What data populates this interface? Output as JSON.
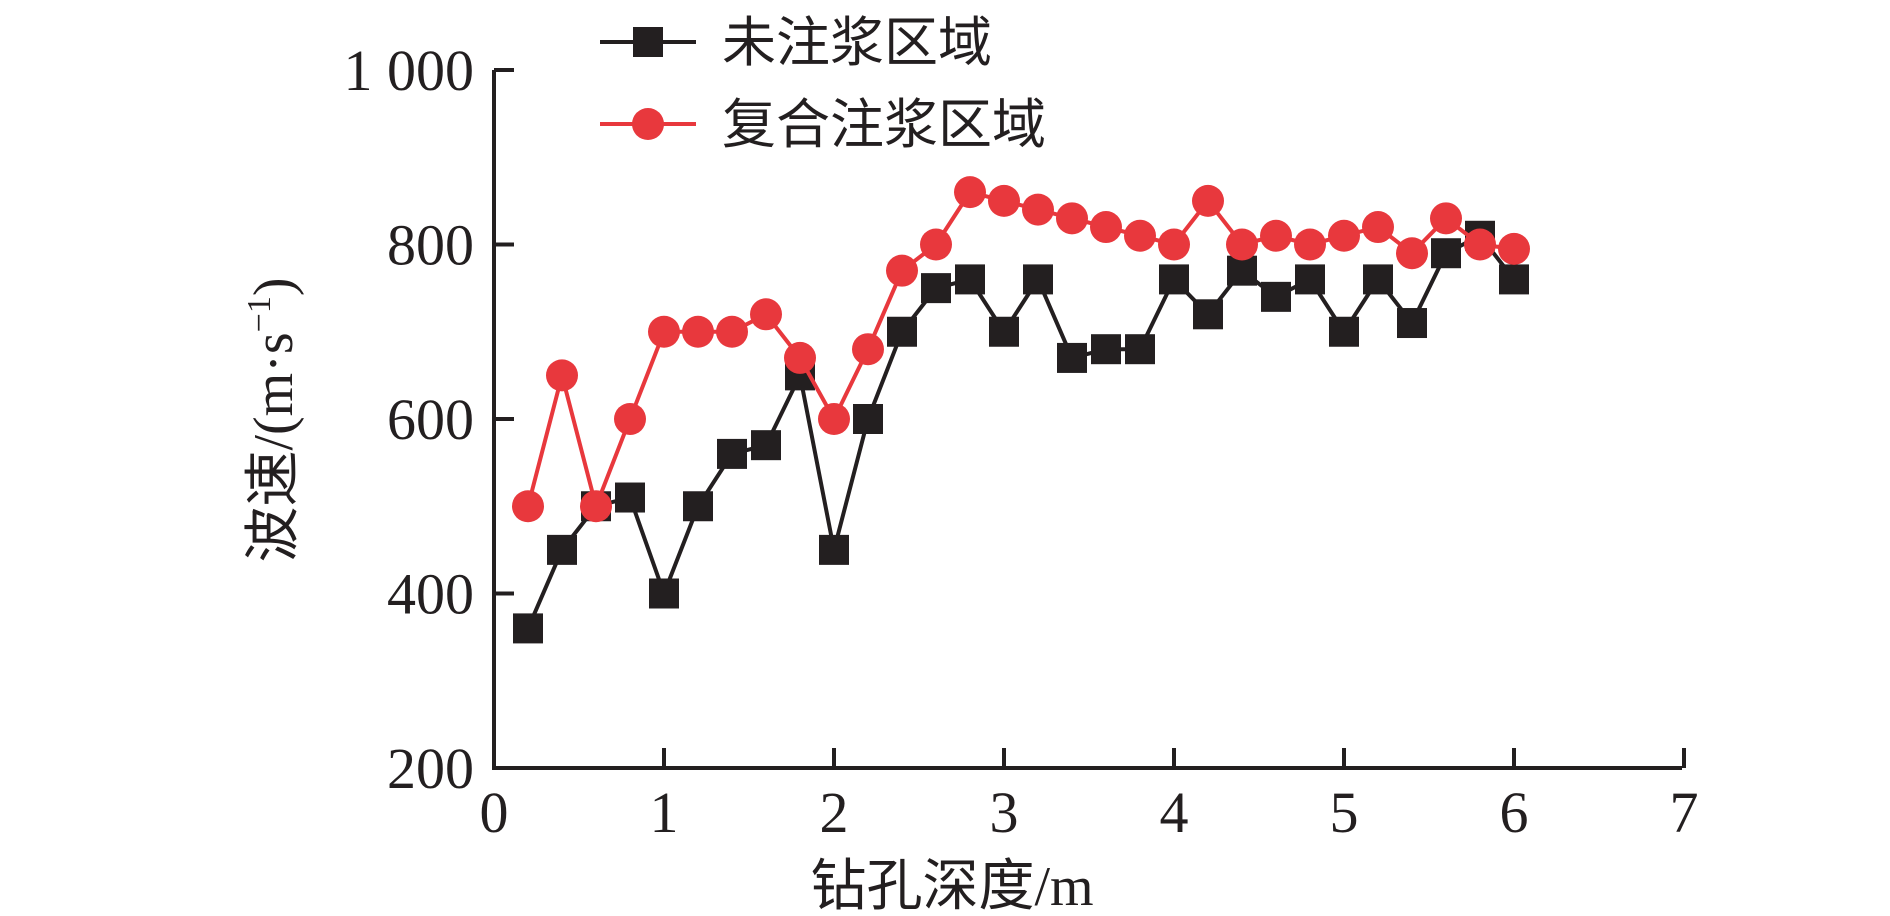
{
  "chart_data": {
    "type": "line",
    "xlabel": "钻孔深度/m",
    "ylabel": "波速/(m·s",
    "ylabel_sup": "−1",
    "ylabel_close": ")",
    "xlim": [
      0,
      7
    ],
    "ylim": [
      200,
      1000
    ],
    "xticks": [
      0,
      1,
      2,
      3,
      4,
      5,
      6,
      7
    ],
    "yticks": [
      200,
      400,
      600,
      800,
      1000
    ],
    "xtick_labels": [
      "0",
      "1",
      "2",
      "3",
      "4",
      "5",
      "6",
      "7"
    ],
    "ytick_labels": [
      "200",
      "400",
      "600",
      "800",
      "1 000"
    ],
    "grid": false,
    "legend_position": "top-left",
    "x": [
      0.2,
      0.4,
      0.6,
      0.8,
      1.0,
      1.2,
      1.4,
      1.6,
      1.8,
      2.0,
      2.2,
      2.4,
      2.6,
      2.8,
      3.0,
      3.2,
      3.4,
      3.6,
      3.8,
      4.0,
      4.2,
      4.4,
      4.6,
      4.8,
      5.0,
      5.2,
      5.4,
      5.6,
      5.8,
      6.0
    ],
    "series": [
      {
        "name": "未注浆区域",
        "color": "#231f20",
        "marker": "square",
        "values": [
          360,
          450,
          500,
          510,
          400,
          500,
          560,
          570,
          650,
          450,
          600,
          700,
          750,
          760,
          700,
          760,
          670,
          680,
          680,
          760,
          720,
          770,
          740,
          760,
          700,
          760,
          710,
          790,
          810,
          760
        ]
      },
      {
        "name": "复合注浆区域",
        "color": "#e8383d",
        "marker": "circle",
        "values": [
          500,
          650,
          500,
          600,
          700,
          700,
          700,
          720,
          670,
          600,
          680,
          770,
          800,
          860,
          850,
          840,
          830,
          820,
          810,
          800,
          850,
          800,
          810,
          800,
          810,
          820,
          790,
          830,
          800,
          795
        ]
      }
    ]
  }
}
